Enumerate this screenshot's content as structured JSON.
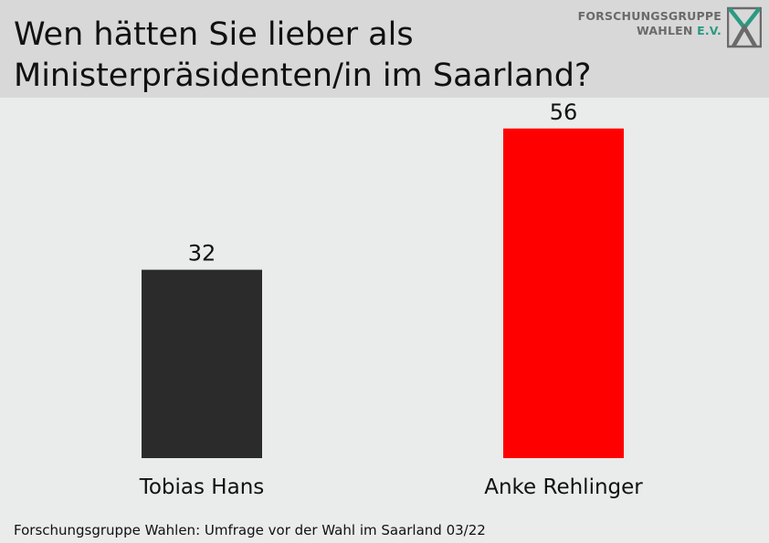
{
  "header": {
    "title_line1": "Wen hätten Sie lieber als",
    "title_line2": "Ministerpräsidenten/in im Saarland?",
    "logo_line1": "FORSCHUNGSGRUPPE",
    "logo_line2_main": "WAHLEN ",
    "logo_line2_suffix": "E.V."
  },
  "footer": {
    "source": "Forschungsgruppe Wahlen: Umfrage vor der Wahl im Saarland 03/22"
  },
  "colors": {
    "background": "#e9eceb",
    "header": "#d8d8d8",
    "bar_hans": "#2b2b2b",
    "bar_rehlinger": "#ff0000"
  },
  "chart_data": {
    "type": "bar",
    "categories": [
      "Tobias Hans",
      "Anke Rehlinger"
    ],
    "values": [
      32,
      56
    ],
    "colors": [
      "#2b2b2b",
      "#ff0000"
    ],
    "data_labels": [
      "32",
      "56"
    ],
    "ylim": [
      0,
      60
    ],
    "grid": false,
    "legend": "none"
  }
}
